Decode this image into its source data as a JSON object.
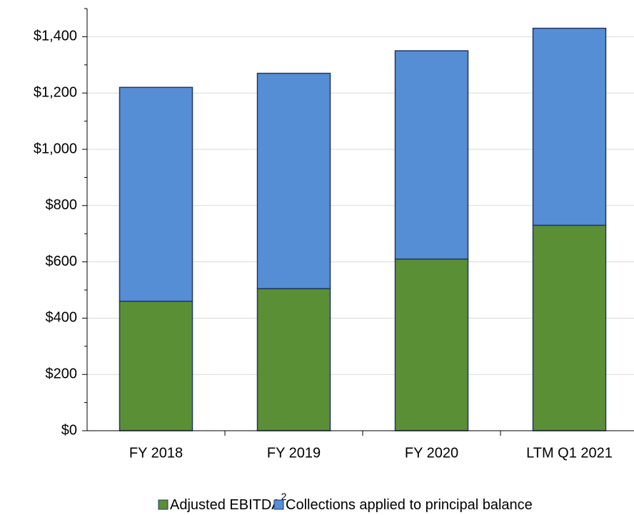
{
  "chart_data": {
    "type": "stacked_bar",
    "categories": [
      "FY 2018",
      "FY 2019",
      "FY 2020",
      "LTM Q1 2021"
    ],
    "series": [
      {
        "name": "Adjusted EBITDA",
        "footnote_mark": "2",
        "color": "#5b8f35",
        "values": [
          460,
          505,
          610,
          730
        ]
      },
      {
        "name": "Collections applied to principal balance",
        "color": "#558ed5",
        "values": [
          760,
          765,
          740,
          700
        ]
      }
    ],
    "ylim": [
      0,
      1500
    ],
    "yticks": [
      {
        "value": 0,
        "label": "$0"
      },
      {
        "value": 200,
        "label": "$200"
      },
      {
        "value": 400,
        "label": "$400"
      },
      {
        "value": 600,
        "label": "$600"
      },
      {
        "value": 800,
        "label": "$800"
      },
      {
        "value": 1000,
        "label": "$1,000"
      },
      {
        "value": 1200,
        "label": "$1,200"
      },
      {
        "value": 1400,
        "label": "$1,400"
      }
    ],
    "yminor_ticks": [
      100,
      300,
      500,
      700,
      900,
      1100,
      1300,
      1500
    ],
    "grid": true,
    "legend": "bottom"
  }
}
